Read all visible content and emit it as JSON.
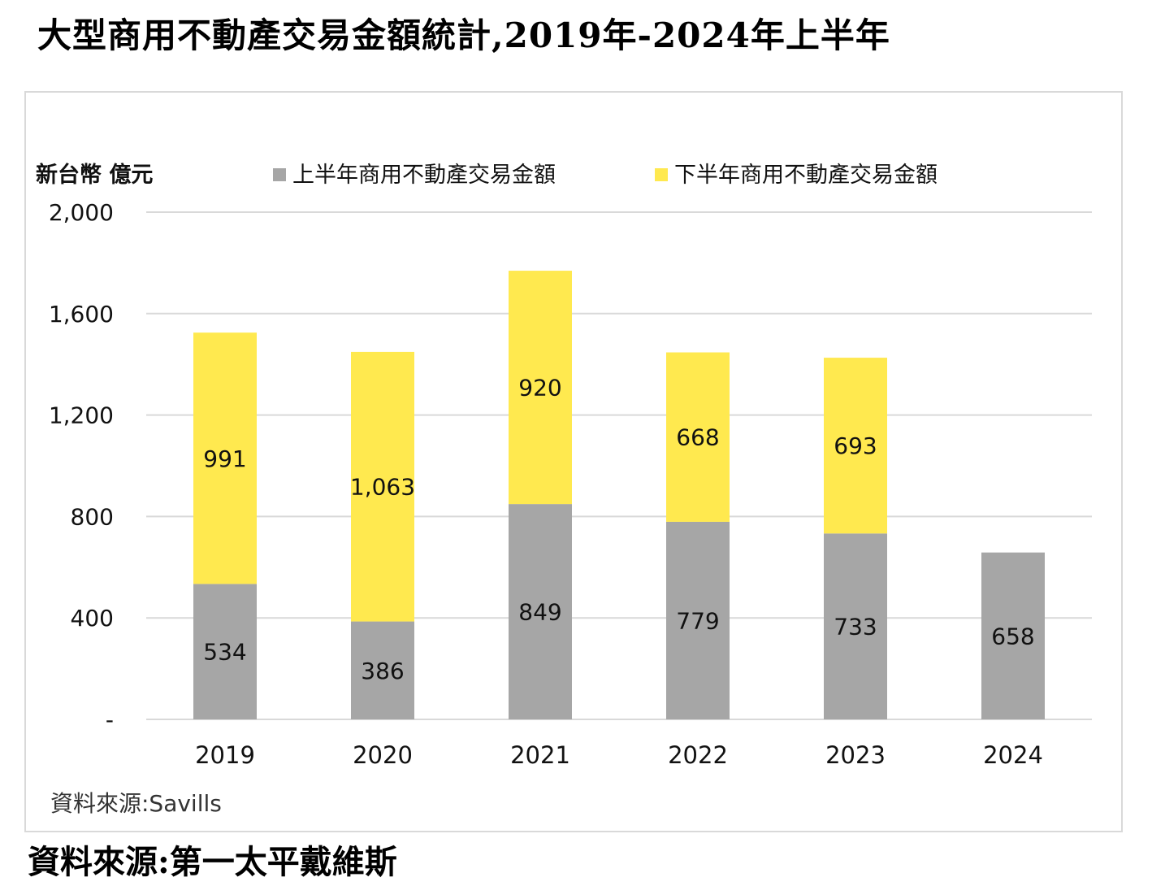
{
  "page": {
    "title": "大型商用不動產交易金額統計,2019年-2024年上半年",
    "source": "資料來源:第一太平戴維斯"
  },
  "chart_data": {
    "type": "bar",
    "stacked": true,
    "categories": [
      "2019",
      "2020",
      "2021",
      "2022",
      "2023",
      "2024"
    ],
    "series": [
      {
        "name": "上半年商用不動產交易金額",
        "color": "#a6a6a6",
        "values": [
          534,
          386,
          849,
          779,
          733,
          658
        ],
        "labels": [
          "534",
          "386",
          "849",
          "779",
          "733",
          "658"
        ]
      },
      {
        "name": "下半年商用不動產交易金額",
        "color": "#ffe94f",
        "values": [
          991,
          1063,
          920,
          668,
          693,
          null
        ],
        "labels": [
          "991",
          "1,063",
          "920",
          "668",
          "693",
          ""
        ]
      }
    ],
    "ylabel": "新台幣 億元",
    "ylim": [
      0,
      2000
    ],
    "yticks": [
      0,
      400,
      800,
      1200,
      1600,
      2000
    ],
    "ytick_labels": [
      "-",
      "400",
      "800",
      "1,200",
      "1,600",
      "2,000"
    ],
    "grid": true,
    "legend_position": "top",
    "source_note": "資料來源:Savills"
  }
}
